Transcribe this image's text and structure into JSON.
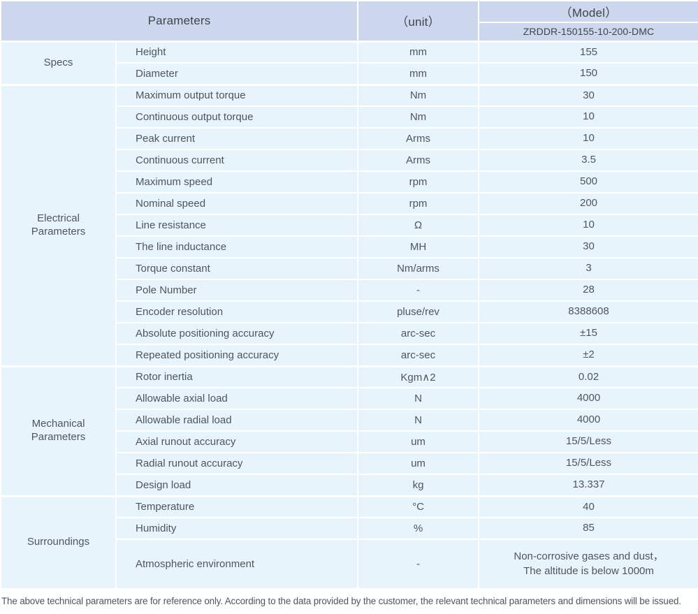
{
  "header": {
    "parameters_label": "Parameters",
    "unit_label": "（unit）",
    "model_label": "（Model）",
    "model_value": "ZRDDR-150155-10-200-DMC"
  },
  "sections": [
    {
      "name": "Specs",
      "rows": [
        {
          "parameter": "Height",
          "unit": "mm",
          "value": "155"
        },
        {
          "parameter": "Diameter",
          "unit": "mm",
          "value": "150"
        }
      ]
    },
    {
      "name": "Electrical Parameters",
      "rows": [
        {
          "parameter": "Maximum output torque",
          "unit": "Nm",
          "value": "30"
        },
        {
          "parameter": "Continuous output torque",
          "unit": "Nm",
          "value": "10"
        },
        {
          "parameter": "Peak current",
          "unit": "Arms",
          "value": "10"
        },
        {
          "parameter": "Continuous current",
          "unit": "Arms",
          "value": "3.5"
        },
        {
          "parameter": "Maximum speed",
          "unit": "rpm",
          "value": "500"
        },
        {
          "parameter": "Nominal speed",
          "unit": "rpm",
          "value": "200"
        },
        {
          "parameter": "Line resistance",
          "unit": "Ω",
          "value": "10"
        },
        {
          "parameter": "The line inductance",
          "unit": "MH",
          "value": "30"
        },
        {
          "parameter": "Torque constant",
          "unit": "Nm/arms",
          "value": "3"
        },
        {
          "parameter": "Pole Number",
          "unit": "-",
          "value": "28"
        },
        {
          "parameter": "Encoder resolution",
          "unit": "pluse/rev",
          "value": "8388608"
        },
        {
          "parameter": "Absolute positioning accuracy",
          "unit": "arc-sec",
          "value": "±15"
        },
        {
          "parameter": "Repeated positioning accuracy",
          "unit": "arc-sec",
          "value": "±2"
        }
      ]
    },
    {
      "name": "Mechanical Parameters",
      "rows": [
        {
          "parameter": "Rotor inertia",
          "unit": "Kgm∧2",
          "value": "0.02"
        },
        {
          "parameter": "Allowable axial load",
          "unit": "N",
          "value": "4000"
        },
        {
          "parameter": "Allowable radial load",
          "unit": "N",
          "value": "4000"
        },
        {
          "parameter": "Axial runout accuracy",
          "unit": "um",
          "value": "15/5/Less"
        },
        {
          "parameter": "Radial runout accuracy",
          "unit": "um",
          "value": "15/5/Less"
        },
        {
          "parameter": "Design load",
          "unit": "kg",
          "value": "13.337"
        }
      ]
    },
    {
      "name": "Surroundings",
      "rows": [
        {
          "parameter": "Temperature",
          "unit": "°C",
          "value": "40"
        },
        {
          "parameter": "Humidity",
          "unit": "%",
          "value": "85"
        },
        {
          "parameter": "Atmospheric environment",
          "unit": "-",
          "value": "Non-corrosive gases and dust，\nThe altitude is below 1000m"
        }
      ]
    }
  ],
  "footer": {
    "note": "The above technical parameters are for reference only. According to the data provided by the customer, the relevant technical parameters and dimensions will be issued."
  },
  "colors": {
    "header_bg": "#ccd6ec",
    "row_bg": "#e7f4fc",
    "header_text": "#3f454c",
    "body_text": "#4f555c"
  }
}
